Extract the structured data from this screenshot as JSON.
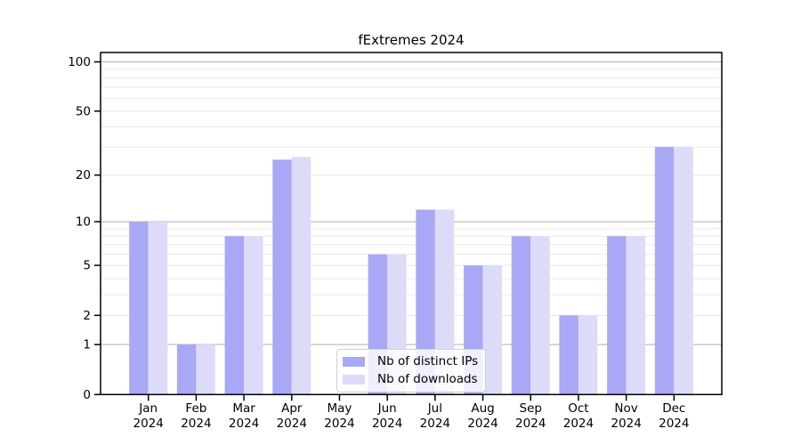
{
  "header": {
    "title": "fExtremes 2024"
  },
  "chart_data": {
    "type": "bar",
    "title": "fExtremes 2024",
    "categories": [
      "Jan",
      "Feb",
      "Mar",
      "Apr",
      "May",
      "Jun",
      "Jul",
      "Aug",
      "Sep",
      "Oct",
      "Nov",
      "Dec"
    ],
    "category_year": "2024",
    "series": [
      {
        "name": "Nb of distinct IPs",
        "color": "#a8a8f6",
        "values": [
          10,
          1,
          8,
          25,
          0,
          6,
          12,
          5,
          8,
          2,
          8,
          30
        ]
      },
      {
        "name": "Nb of downloads",
        "color": "#dcdcf9",
        "values": [
          10,
          1,
          8,
          26,
          0,
          6,
          12,
          5,
          8,
          2,
          8,
          30
        ]
      }
    ],
    "xlabel": "",
    "ylabel": "",
    "yscale": "log1p",
    "ylim": [
      0,
      114
    ],
    "yticks_labeled": [
      0,
      1,
      2,
      5,
      10,
      20,
      50,
      100
    ],
    "yticks_minor": [
      2,
      3,
      4,
      5,
      6,
      7,
      8,
      9,
      20,
      30,
      40,
      50,
      60,
      70,
      80,
      90
    ],
    "gridlines_major": [
      1,
      10,
      100
    ],
    "grid": "on",
    "legend_position": "bottom-center",
    "colors": {
      "bar_distinct_ips": "#a8a8f6",
      "bar_downloads": "#dcdcf9",
      "grid_minor": "#e8e8e8",
      "grid_major": "#bdbdbd",
      "axis": "#000000",
      "background": "#ffffff"
    }
  }
}
